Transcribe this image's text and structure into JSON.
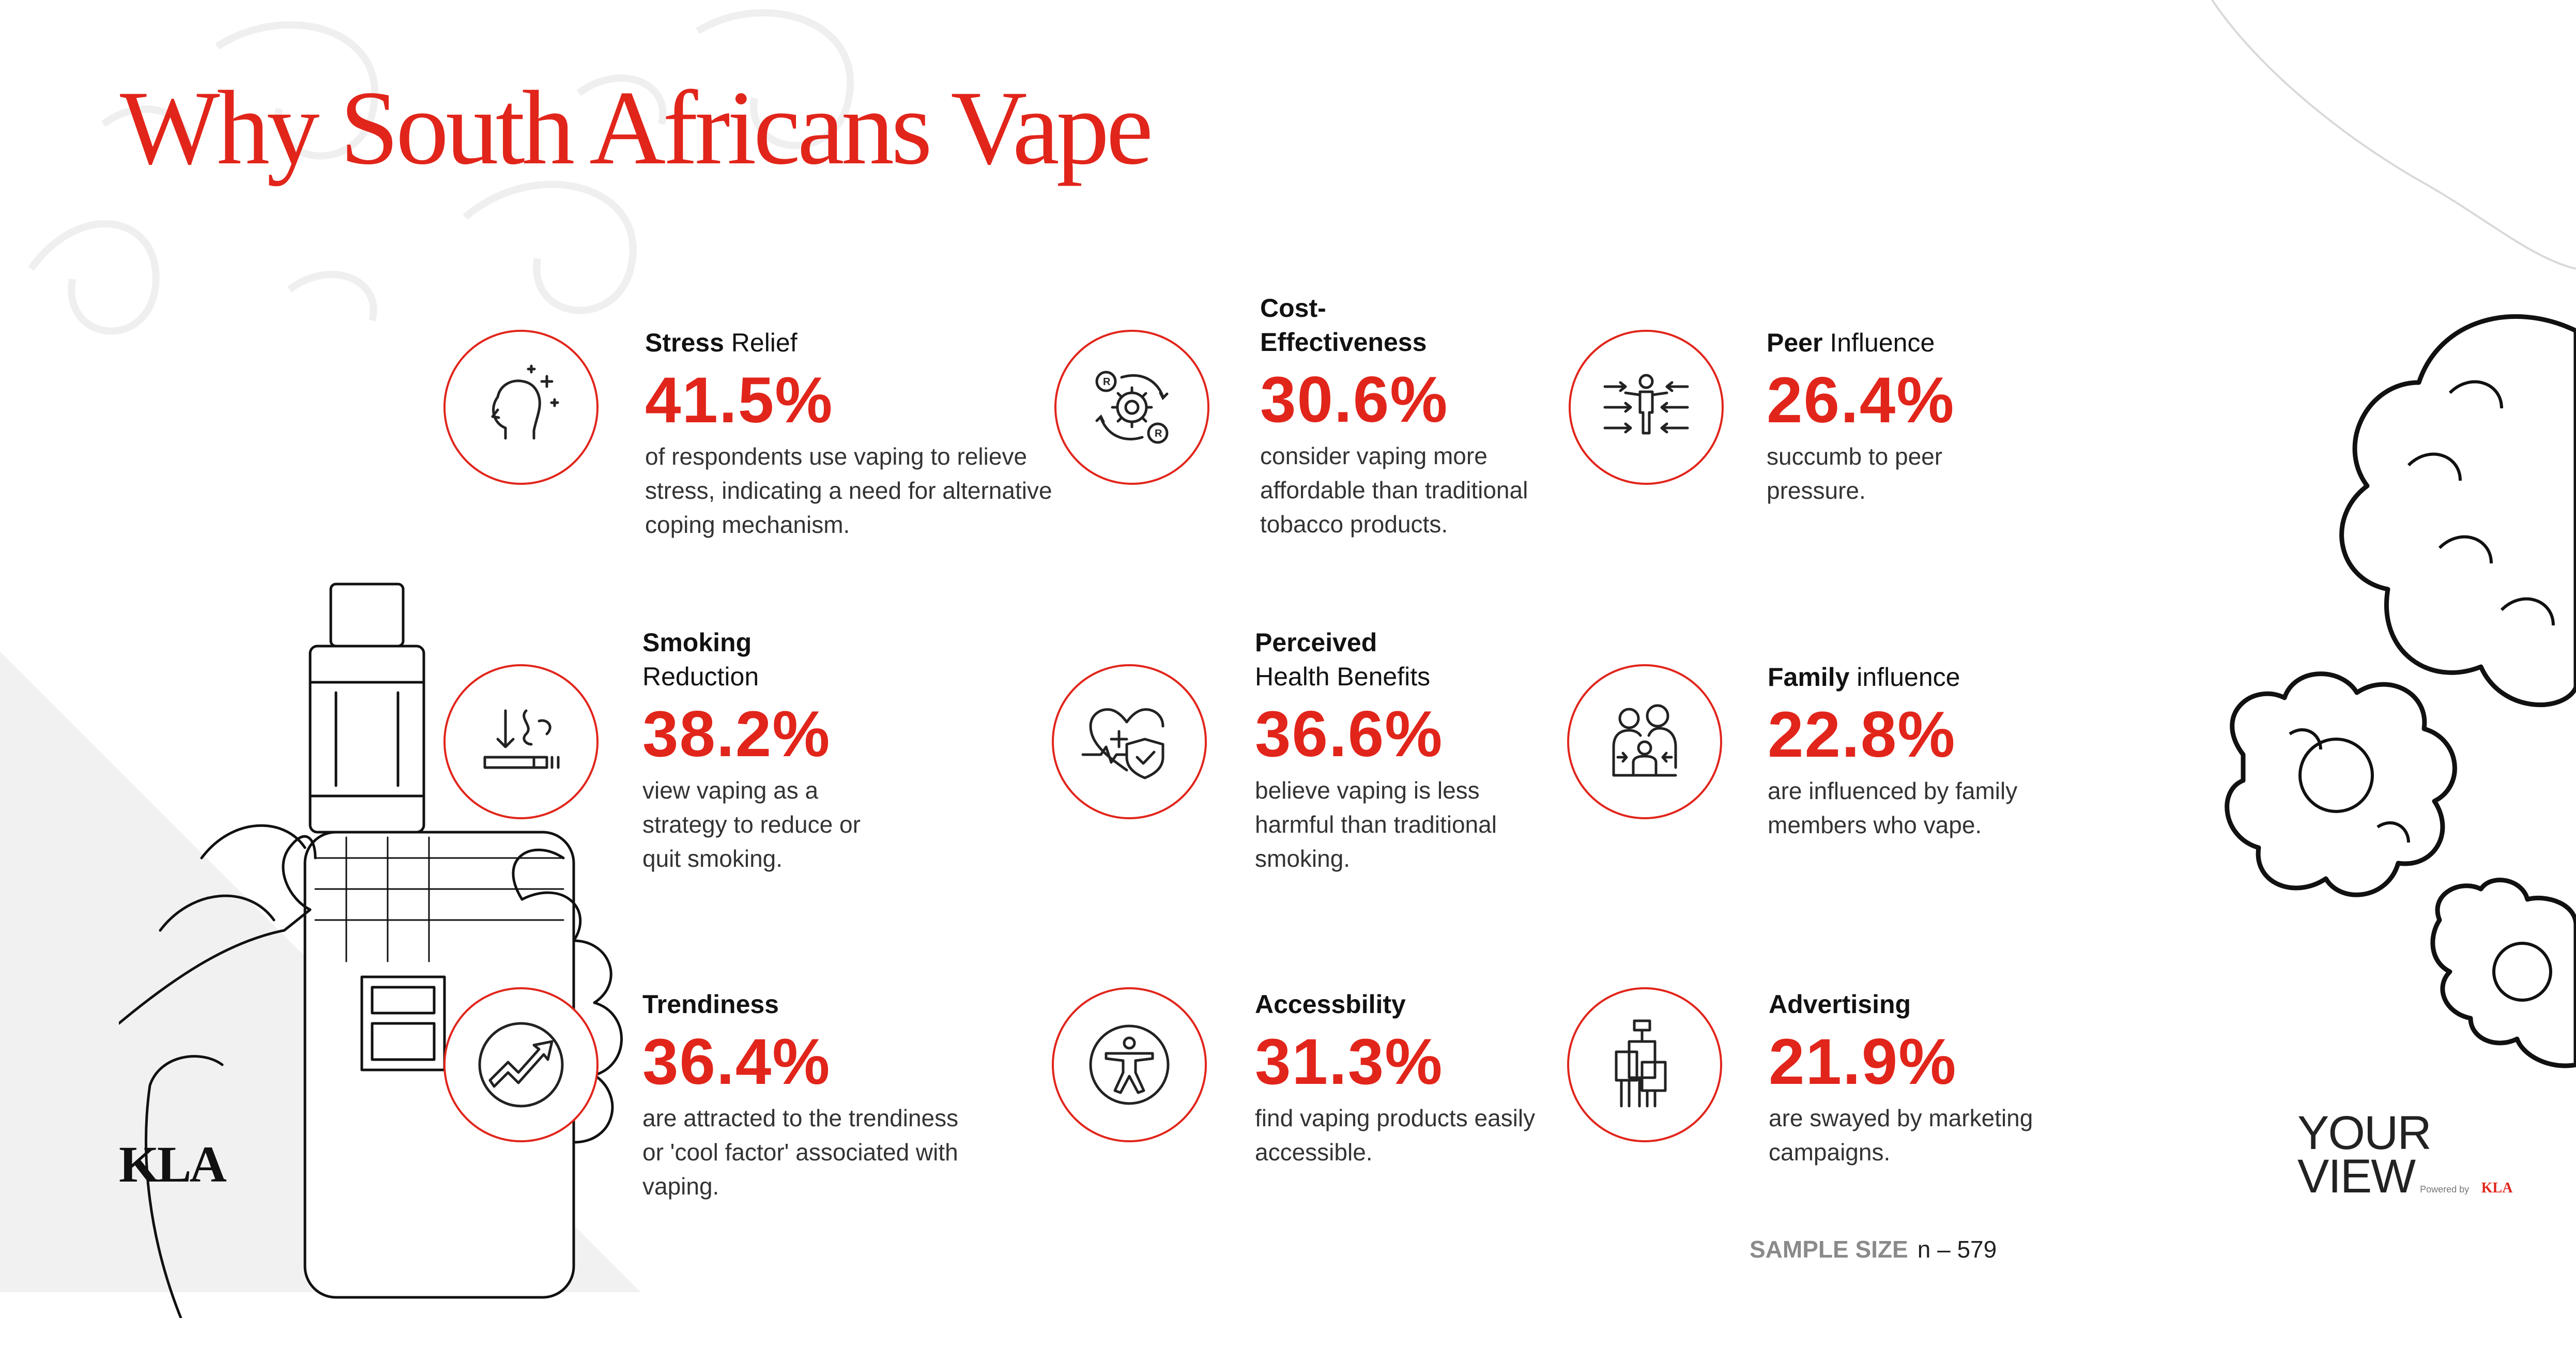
{
  "title": "Why South Africans Vape",
  "colors": {
    "accent": "#e1251b",
    "text": "#222222",
    "muted": "#8a8a8a"
  },
  "chart_data": {
    "type": "table",
    "title": "Why South Africans Vape",
    "unit": "%",
    "categories": [
      {
        "bold": "Stress",
        "rest": " Relief",
        "value": 41.5,
        "value_text": "41.5%",
        "description": "of respondents use vaping to relieve stress, indicating a need for alternative coping mechanism.",
        "icon": "head-sparkle-icon"
      },
      {
        "bold": "Cost-Effectiveness",
        "rest": "",
        "value": 30.6,
        "value_text": "30.6%",
        "description": "consider vaping more affordable than traditional tobacco products.",
        "icon": "gear-exchange-icon"
      },
      {
        "bold": "Peer",
        "rest": " Influence",
        "value": 26.4,
        "value_text": "26.4%",
        "description": "succumb to peer pressure.",
        "icon": "person-arrows-icon"
      },
      {
        "bold": "Smoking",
        "rest": "Reduction",
        "value": 38.2,
        "value_text": "38.2%",
        "description": "view vaping as a strategy to reduce or quit smoking.",
        "icon": "cigarette-smoke-icon"
      },
      {
        "bold": "Perceived",
        "rest": "Health Benefits",
        "value": 36.6,
        "value_text": "36.6%",
        "description": "believe vaping is less harmful than traditional smoking.",
        "icon": "heart-shield-icon"
      },
      {
        "bold": "Family",
        "rest": " influence",
        "value": 22.8,
        "value_text": "22.8%",
        "description": "are influenced by family members who vape.",
        "icon": "family-icon"
      },
      {
        "bold": "Trendiness",
        "rest": "",
        "value": 36.4,
        "value_text": "36.4%",
        "description": "are attracted to the trendiness or 'cool factor' associated with vaping.",
        "icon": "trend-arrow-icon"
      },
      {
        "bold": "Accessbility",
        "rest": "",
        "value": 31.3,
        "value_text": "31.3%",
        "description": "find vaping products easily accessible.",
        "icon": "accessibility-icon"
      },
      {
        "bold": "Advertising",
        "rest": "",
        "value": 21.9,
        "value_text": "21.9%",
        "description": "are swayed by marketing campaigns.",
        "icon": "signboard-icon"
      }
    ]
  },
  "sample": {
    "label": "SAMPLE SIZE",
    "value": "n – 579"
  },
  "logos": {
    "kla": "KLA",
    "yourview_line1": "YOUR",
    "yourview_line2": "VIEW",
    "yourview_powered": "Powered by",
    "yourview_brand": "KLA"
  }
}
